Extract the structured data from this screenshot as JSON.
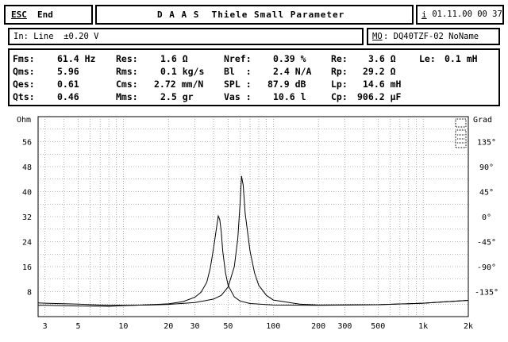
{
  "topbar": {
    "esc_key": "ESC",
    "esc_label": "End",
    "title": "D A A S  Thiele Small Parameter",
    "info_key": "i",
    "datetime": " 01.11.00 00 37"
  },
  "inputbar": {
    "input_text": "In: Line  ±0.20 V",
    "model_key": "MO",
    "model_text": ": DQ40TZF-02 NoName"
  },
  "params": {
    "rows": [
      [
        {
          "label": "Fms:",
          "value": "61.4 Hz"
        },
        {
          "label": "Res:",
          "value": "1.6 Ω"
        },
        {
          "label": "Nref:",
          "value": "0.39 %"
        },
        {
          "label": "Re:",
          "value": "3.6 Ω"
        },
        {
          "label": "Le:",
          "value": "0.1 mH"
        }
      ],
      [
        {
          "label": "Qms:",
          "value": "5.96"
        },
        {
          "label": "Rms:",
          "value": "0.1 kg/s"
        },
        {
          "label": "Bl  :",
          "value": "2.4 N/A"
        },
        {
          "label": "Rp:",
          "value": "29.2 Ω"
        }
      ],
      [
        {
          "label": "Qes:",
          "value": "0.61"
        },
        {
          "label": "Cms:",
          "value": "2.72 mm/N"
        },
        {
          "label": "SPL :",
          "value": "87.9 dB"
        },
        {
          "label": "Lp:",
          "value": "14.6 mH"
        }
      ],
      [
        {
          "label": "Qts:",
          "value": "0.46"
        },
        {
          "label": "Mms:",
          "value": "2.5 gr"
        },
        {
          "label": "Vas :",
          "value": "10.6 l"
        },
        {
          "label": "Cp:",
          "value": "906.2 µF"
        }
      ]
    ]
  },
  "chart_data": {
    "type": "line",
    "title": "",
    "ylabel_left": "Ohm",
    "ylabel_right": "Grad",
    "x_ticks": [
      "3",
      "5",
      "10",
      "20",
      "30",
      "50",
      "100",
      "200",
      "300",
      "500",
      "1k",
      "2k"
    ],
    "x_tick_values": [
      3,
      5,
      10,
      20,
      30,
      50,
      100,
      200,
      300,
      500,
      1000,
      2000
    ],
    "xlim": [
      2.7,
      2000
    ],
    "x_scale": "log",
    "y_left_ticks": [
      "56",
      "48",
      "40",
      "32",
      "24",
      "16",
      "8"
    ],
    "y_left_values": [
      56,
      48,
      40,
      32,
      24,
      16,
      8
    ],
    "ylim_left": [
      0,
      64
    ],
    "y_right_ticks": [
      "135°",
      "90°",
      "45°",
      "0°",
      "-45°",
      "-90°",
      "-135°"
    ],
    "y_right_values": [
      135,
      90,
      45,
      0,
      -45,
      -90,
      -135
    ],
    "ylim_right": [
      -180,
      180
    ],
    "grid": true,
    "series": [
      {
        "x": [
          2.7,
          3,
          5,
          8,
          10,
          15,
          20,
          25,
          30,
          33,
          36,
          38,
          40,
          42,
          43,
          44,
          45,
          46,
          48,
          50,
          55,
          60,
          70,
          100,
          200,
          500,
          1000,
          2000
        ],
        "y": [
          3.6,
          3.6,
          3.4,
          3.3,
          3.5,
          3.8,
          4.1,
          4.8,
          6.2,
          7.8,
          11,
          15.5,
          22,
          29,
          32.2,
          31,
          27,
          21,
          14,
          10,
          6.3,
          5,
          4.2,
          3.7,
          3.6,
          3.8,
          4.3,
          5.2
        ]
      },
      {
        "x": [
          2.7,
          3,
          5,
          8,
          10,
          15,
          20,
          30,
          40,
          45,
          50,
          55,
          58,
          60,
          61.4,
          63,
          65,
          70,
          75,
          80,
          90,
          100,
          150,
          200,
          500,
          1000,
          2000
        ],
        "y": [
          4.4,
          4.3,
          4.0,
          3.6,
          3.6,
          3.7,
          3.9,
          4.5,
          5.6,
          6.8,
          9.5,
          16,
          25,
          36,
          45,
          42,
          33,
          21,
          14,
          10,
          6.8,
          5.3,
          4.0,
          3.7,
          3.8,
          4.3,
          5.2
        ]
      }
    ]
  },
  "right_widget": {
    "top_glyph": "□",
    "mid_glyph": "⊟"
  }
}
